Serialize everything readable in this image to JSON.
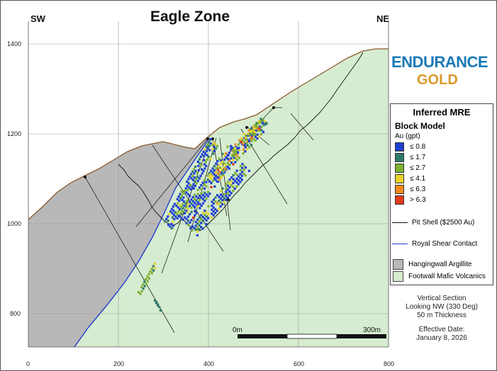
{
  "title": "Eagle Zone",
  "direction_left": "SW",
  "direction_right": "NE",
  "logo": {
    "line1": "ENDURANCE",
    "line2": "GOLD",
    "color1": "#1a7ab8",
    "color2": "#d99a2b"
  },
  "axes": {
    "y_ticks": [
      "1400",
      "1200",
      "1000",
      "800"
    ],
    "x_ticks": [
      "0",
      "200",
      "400",
      "600",
      "800"
    ]
  },
  "legend": {
    "title": "Inferred MRE",
    "subtitle": "Block Model",
    "unit": "Au (gpt)",
    "grades": [
      {
        "label": "≤ 0.8",
        "color": "#1f3fcf"
      },
      {
        "label": "≤ 1.7",
        "color": "#2e7a6a"
      },
      {
        "label": "≤ 2.7",
        "color": "#7fb032"
      },
      {
        "label": "≤ 4.1",
        "color": "#e8d32a"
      },
      {
        "label": "≤ 6.3",
        "color": "#f08a1e"
      },
      {
        "label": "> 6.3",
        "color": "#e23a1a"
      }
    ],
    "pit_shell": "Pit Shell ($2500 Au)",
    "shear_contact": "Royal Shear Contact",
    "hangingwall": "Hangingwall Argillite",
    "footwall": "Footwall Mafic Volcanics"
  },
  "scale": {
    "start": "0m",
    "end": "300m"
  },
  "notes": {
    "line1": "Vertical Section",
    "line2": "Looking NW (330 Deg)",
    "line3": "50 m Thickness",
    "line4": "Effective Date:",
    "line5": "January 8, 2026"
  },
  "colors": {
    "hangingwall": "#b8b8b8",
    "footwall": "#d6ecd0",
    "topography": "#8a5a2b",
    "shear": "#1f3fcf"
  }
}
